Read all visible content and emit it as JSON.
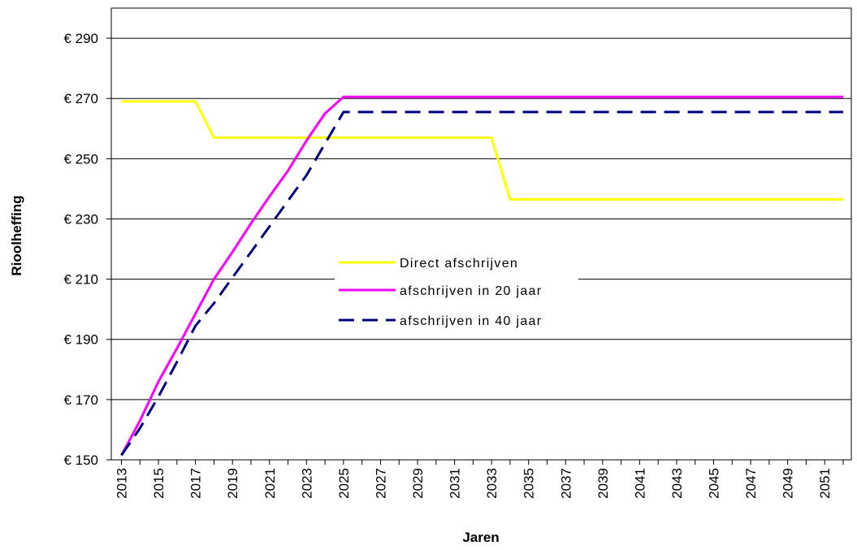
{
  "chart_data": {
    "type": "line",
    "xlabel": "Jaren",
    "ylabel": "Rioolheffing",
    "x": [
      2013,
      2014,
      2015,
      2016,
      2017,
      2018,
      2019,
      2020,
      2021,
      2022,
      2023,
      2024,
      2025,
      2026,
      2027,
      2028,
      2029,
      2030,
      2031,
      2032,
      2033,
      2034,
      2035,
      2036,
      2037,
      2038,
      2039,
      2040,
      2041,
      2042,
      2043,
      2044,
      2045,
      2046,
      2047,
      2048,
      2049,
      2050,
      2051,
      2052
    ],
    "x_tick_labels": [
      "2013",
      "2015",
      "2017",
      "2019",
      "2021",
      "2023",
      "2025",
      "2027",
      "2029",
      "2031",
      "2033",
      "2035",
      "2037",
      "2039",
      "2041",
      "2043",
      "2045",
      "2047",
      "2049",
      "2051"
    ],
    "ylim": [
      150,
      300
    ],
    "y_ticks": [
      150,
      170,
      190,
      210,
      230,
      250,
      270,
      290
    ],
    "y_tick_labels": [
      "€ 150",
      "€ 170",
      "€ 190",
      "€ 210",
      "€ 230",
      "€ 250",
      "€ 270",
      "€ 290"
    ],
    "grid": "horizontal",
    "legend_position": "center",
    "series": [
      {
        "name": "Direct afschrijven",
        "color": "#ffff00",
        "style": "solid",
        "values": [
          269,
          269,
          269,
          269,
          269,
          257,
          257,
          257,
          257,
          257,
          257,
          257,
          257,
          257,
          257,
          257,
          257,
          257,
          257,
          257,
          257,
          236.5,
          236.5,
          236.5,
          236.5,
          236.5,
          236.5,
          236.5,
          236.5,
          236.5,
          236.5,
          236.5,
          236.5,
          236.5,
          236.5,
          236.5,
          236.5,
          236.5,
          236.5,
          236.5
        ]
      },
      {
        "name": "afschrijven in 20 jaar",
        "color": "#ff00ff",
        "style": "solid",
        "values": [
          151.5,
          163,
          176,
          187,
          198.5,
          210,
          219,
          228.5,
          237.5,
          246,
          256,
          265,
          270.5,
          270.5,
          270.5,
          270.5,
          270.5,
          270.5,
          270.5,
          270.5,
          270.5,
          270.5,
          270.5,
          270.5,
          270.5,
          270.5,
          270.5,
          270.5,
          270.5,
          270.5,
          270.5,
          270.5,
          270.5,
          270.5,
          270.5,
          270.5,
          270.5,
          270.5,
          270.5,
          270.5
        ]
      },
      {
        "name": "afschrijven in 40 jaar",
        "color": "#000080",
        "style": "dashed",
        "values": [
          151.5,
          160.5,
          171,
          182.5,
          194.5,
          202,
          210.5,
          219,
          227.5,
          236,
          244.5,
          255,
          265.5,
          265.5,
          265.5,
          265.5,
          265.5,
          265.5,
          265.5,
          265.5,
          265.5,
          265.5,
          265.5,
          265.5,
          265.5,
          265.5,
          265.5,
          265.5,
          265.5,
          265.5,
          265.5,
          265.5,
          265.5,
          265.5,
          265.5,
          265.5,
          265.5,
          265.5,
          265.5,
          265.5
        ]
      }
    ]
  }
}
